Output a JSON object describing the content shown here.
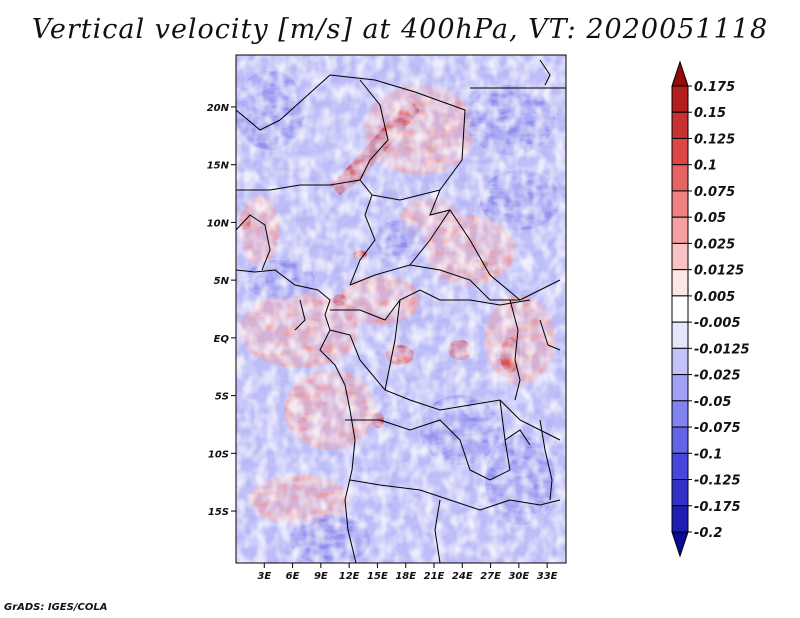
{
  "title": "Vertical velocity [m/s] at 400hPa, VT: 2020051118",
  "credit": "GrADS: IGES/COLA",
  "map": {
    "lat_labels": [
      "20N",
      "15N",
      "10N",
      "5N",
      "EQ",
      "5S",
      "10S",
      "15S"
    ],
    "lon_labels": [
      "3E",
      "6E",
      "9E",
      "12E",
      "15E",
      "18E",
      "21E",
      "24E",
      "27E",
      "30E",
      "33E"
    ],
    "lon_range": [
      0,
      35
    ],
    "lat_range": [
      -19.5,
      24.5
    ]
  },
  "colorbar": {
    "labels": [
      "0.175",
      "0.15",
      "0.125",
      "0.1",
      "0.075",
      "0.05",
      "0.025",
      "0.0125",
      "0.005",
      "-0.005",
      "-0.0125",
      "-0.025",
      "-0.05",
      "-0.075",
      "-0.1",
      "-0.125",
      "-0.175",
      "-0.2"
    ],
    "colors": [
      "#960a0a",
      "#b41e1e",
      "#c83232",
      "#dc4646",
      "#e66464",
      "#f08282",
      "#f5a0a0",
      "#fac3c3",
      "#fde6e6",
      "#ffffff",
      "#e6e6fd",
      "#c3c3fa",
      "#a0a0f5",
      "#8282f0",
      "#6464e6",
      "#4646dc",
      "#3232c8",
      "#1e1eb4",
      "#0a0a96"
    ]
  }
}
